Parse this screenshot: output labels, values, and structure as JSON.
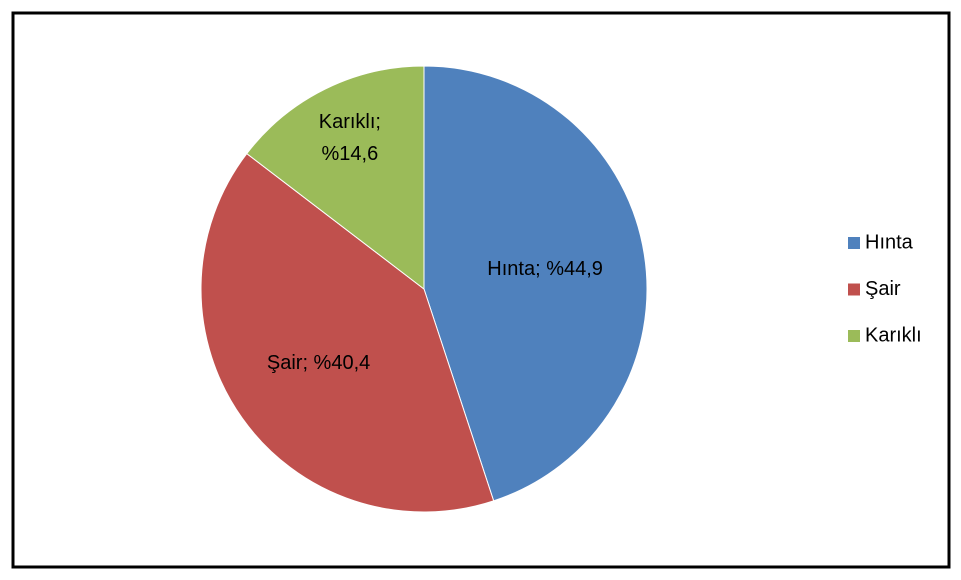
{
  "chart_data": {
    "type": "pie",
    "categories": [
      "Hınta",
      "Şair",
      "Karıklı"
    ],
    "values": [
      44.9,
      40.4,
      14.6
    ],
    "value_labels": [
      "Hınta; %44,9",
      "Şair; %40,4",
      "Karıklı; %14,6"
    ],
    "colors": [
      "#4f81bd",
      "#c0504d",
      "#9bbb59"
    ],
    "legend": "right"
  }
}
